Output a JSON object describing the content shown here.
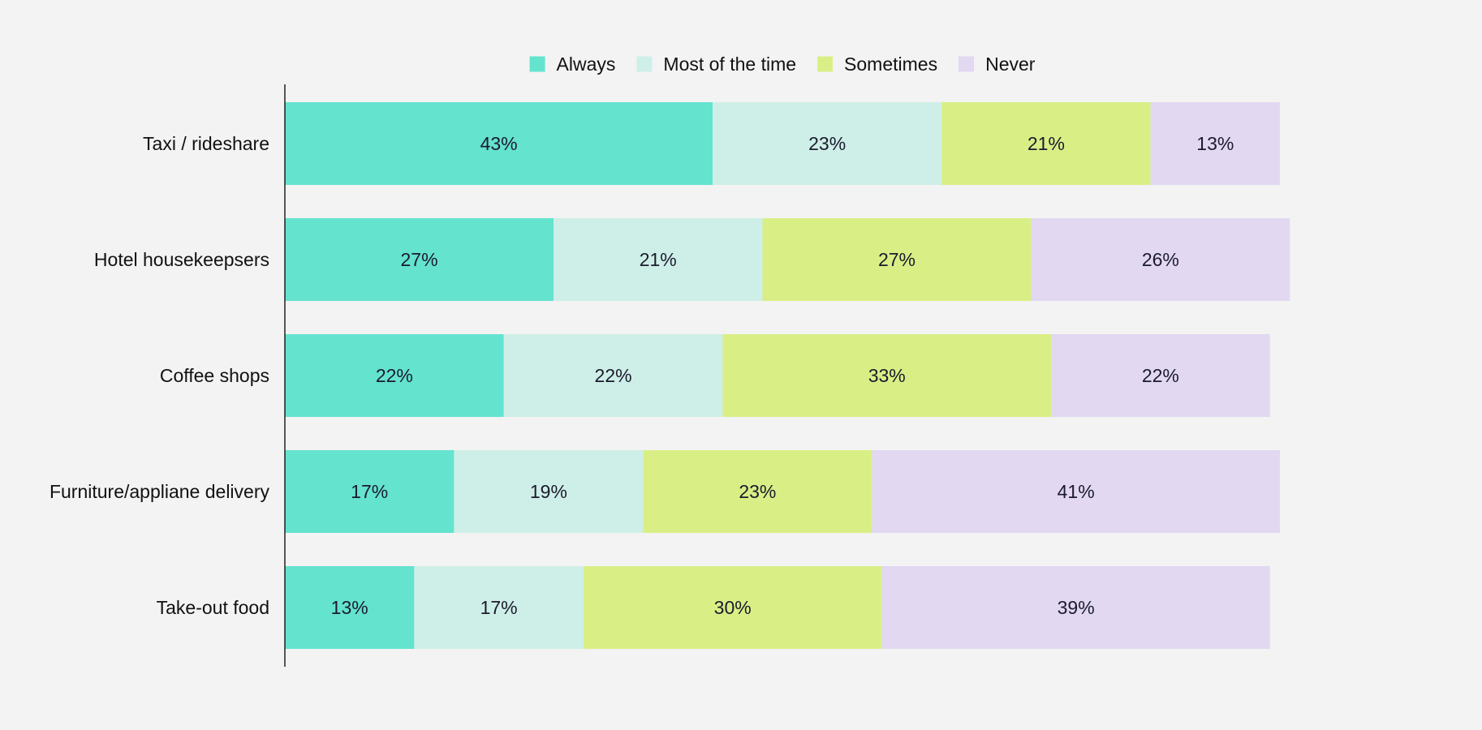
{
  "chart_data": {
    "type": "bar",
    "orientation": "horizontal",
    "stacked": true,
    "title": "",
    "xlabel": "",
    "ylabel": "",
    "xlim": [
      0,
      100
    ],
    "grid": false,
    "legend_position": "top-center",
    "categories": [
      "Taxi / rideshare",
      "Hotel housekeepsers",
      "Coffee shops",
      "Furniture/appliane delivery",
      "Take-out food"
    ],
    "series": [
      {
        "name": "Always",
        "color": "#64e3cf",
        "values": [
          43,
          27,
          22,
          17,
          13
        ]
      },
      {
        "name": "Most of the time",
        "color": "#ceefe7",
        "values": [
          23,
          21,
          22,
          19,
          17
        ]
      },
      {
        "name": "Sometimes",
        "color": "#d9ef86",
        "values": [
          21,
          27,
          33,
          23,
          30
        ]
      },
      {
        "name": "Never",
        "color": "#e2d8f1",
        "values": [
          13,
          26,
          22,
          41,
          39
        ]
      }
    ],
    "value_label_suffix": "%"
  }
}
